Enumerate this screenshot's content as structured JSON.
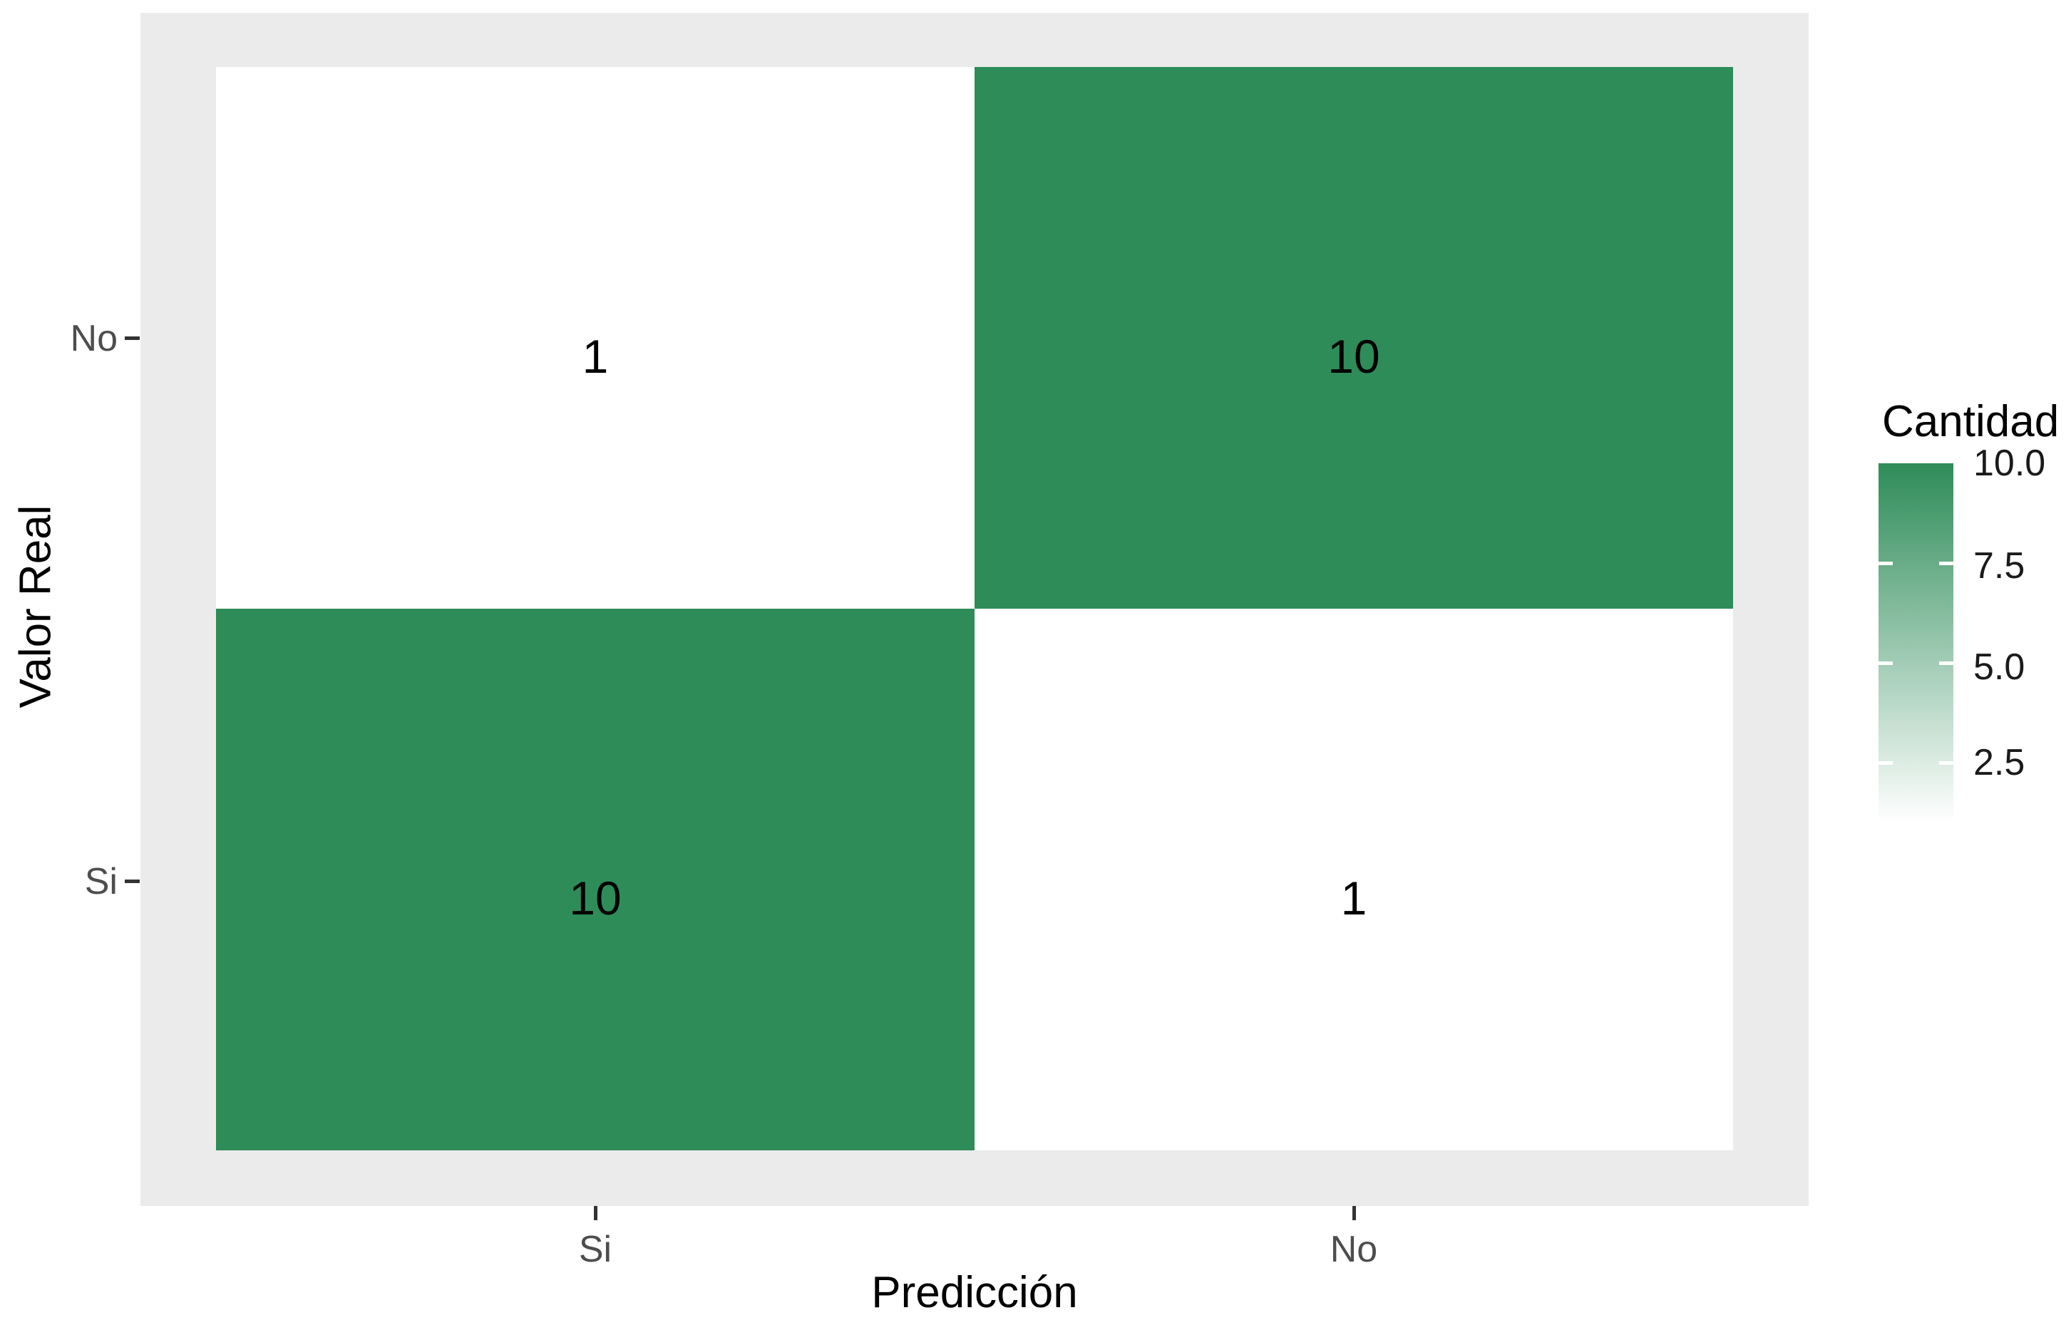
{
  "colors": {
    "tile_green": "#2e8c59",
    "tile_white": "#ffffff",
    "panel_bg": "#ebebeb",
    "axis_tick": "#333333",
    "axis_tick_label": "#4d4d4d",
    "legend_text": "#1a1a1a",
    "text": "#000000"
  },
  "chart_data": {
    "type": "heatmap",
    "title": "",
    "xlabel": "Predicción",
    "ylabel": "Valor Real",
    "x_categories": [
      "Si",
      "No"
    ],
    "y_categories_top_to_bottom": [
      "No",
      "Si"
    ],
    "cells": [
      {
        "prediccion": "Si",
        "valor_real": "No",
        "value": 1
      },
      {
        "prediccion": "No",
        "valor_real": "No",
        "value": 10
      },
      {
        "prediccion": "Si",
        "valor_real": "Si",
        "value": 10
      },
      {
        "prediccion": "No",
        "valor_real": "Si",
        "value": 1
      }
    ],
    "legend": {
      "title": "Cantidad",
      "tick_labels": [
        "10.0",
        "7.5",
        "5.0",
        "2.5"
      ],
      "range": [
        1,
        10
      ],
      "low_color": "#ffffff",
      "high_color": "#2e8c59",
      "position": "right"
    },
    "grid": false,
    "panel_background": "#ebebeb"
  }
}
